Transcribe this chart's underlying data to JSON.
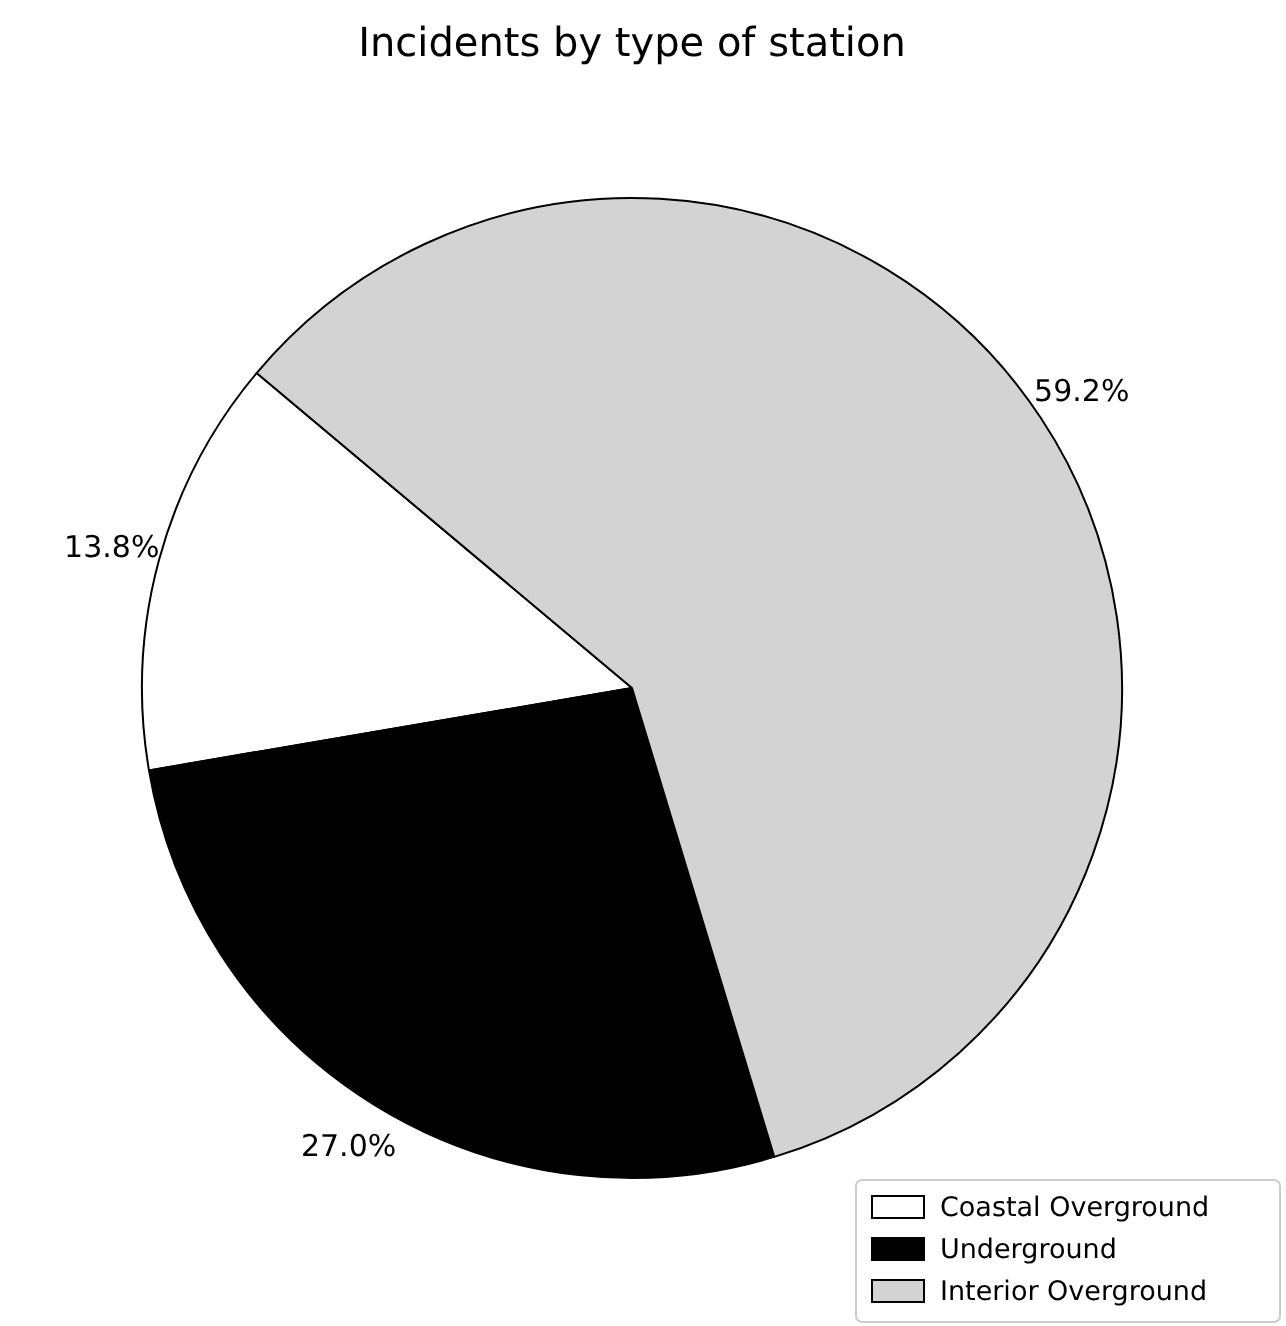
{
  "chart_data": {
    "type": "pie",
    "title": "Incidents by type of station",
    "categories": [
      "Coastal Overground",
      "Underground",
      "Interior Overground"
    ],
    "values": [
      13.8,
      27.0,
      59.2
    ],
    "value_labels": [
      "13.8%",
      "27.0%",
      "59.2%"
    ],
    "colors": [
      "#ffffff",
      "#000000",
      "#d3d3d3"
    ],
    "legend": "bottom right"
  }
}
